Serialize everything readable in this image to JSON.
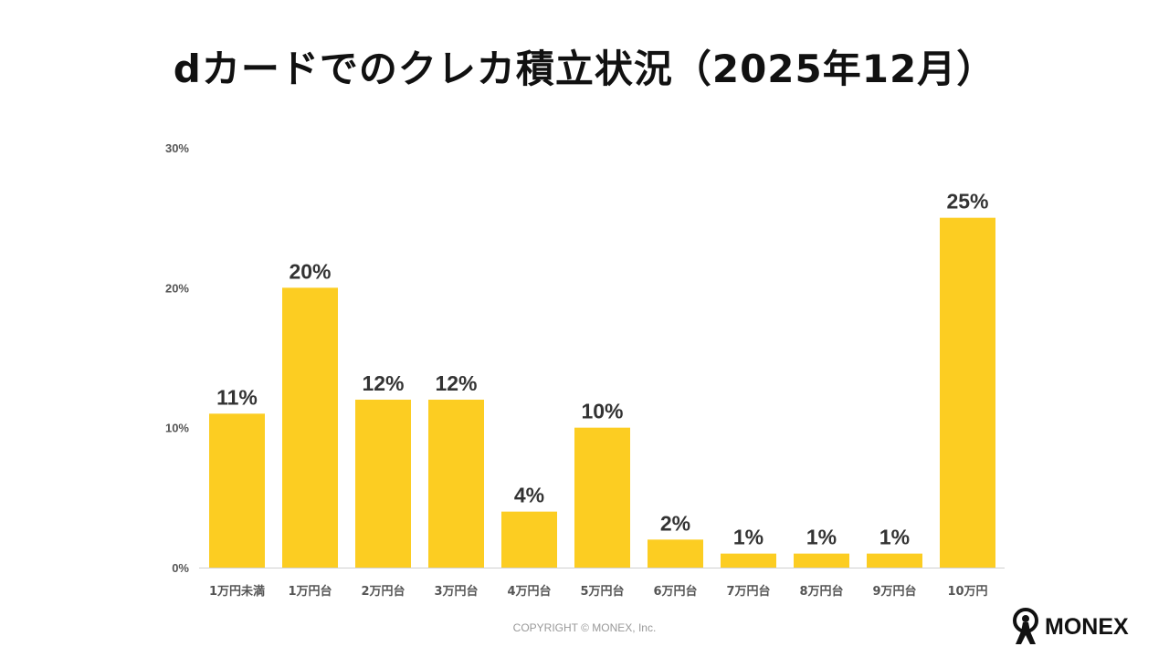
{
  "chart_data": {
    "type": "bar",
    "title": "dカードでのクレカ積立状況（2025年12月）",
    "categories": [
      "1万円未満",
      "1万円台",
      "2万円台",
      "3万円台",
      "4万円台",
      "5万円台",
      "6万円台",
      "7万円台",
      "8万円台",
      "9万円台",
      "10万円"
    ],
    "values": [
      11,
      20,
      12,
      12,
      4,
      10,
      2,
      1,
      1,
      1,
      25
    ],
    "value_unit": "%",
    "ylim": [
      0,
      30
    ],
    "yticks": [
      "0%",
      "10%",
      "20%",
      "30%"
    ],
    "grid": false,
    "bar_color": "#FCCD22",
    "xlabel": "",
    "ylabel": ""
  },
  "footer": {
    "copyright": "COPYRIGHT © MONEX, Inc.",
    "logo_text": "MONEX"
  }
}
